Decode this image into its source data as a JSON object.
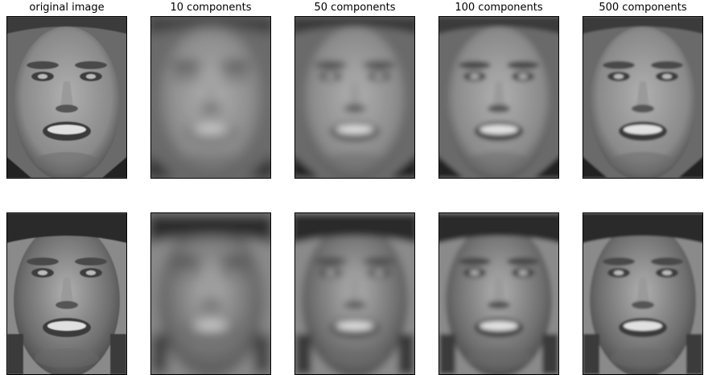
{
  "columns": [
    {
      "title": "original image",
      "blur": 0.6
    },
    {
      "title": "10 components",
      "blur": 7.5
    },
    {
      "title": "50 components",
      "blur": 4.5
    },
    {
      "title": "100 components",
      "blur": 3.0
    },
    {
      "title": "500 components",
      "blur": 1.4
    }
  ],
  "rows": [
    {
      "face": "smiling-man-face",
      "skin": "#8a8a8a",
      "bg": "#6a6a6a",
      "hair": "#3a3a3a",
      "cap": false
    },
    {
      "face": "man-with-cap-face",
      "skin": "#6d6d6d",
      "bg": "#8a8a8a",
      "hair": "#2a2a2a",
      "cap": true
    }
  ]
}
